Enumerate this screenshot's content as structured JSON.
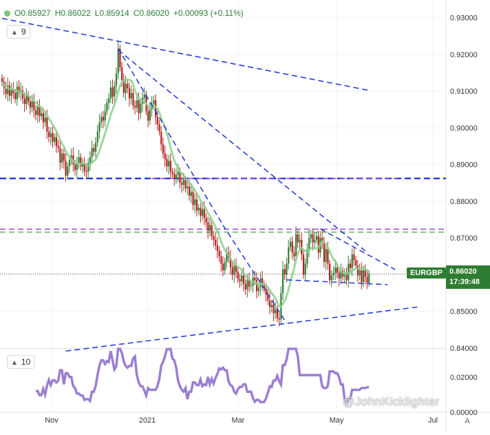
{
  "symbol": "EURGBP",
  "ohlc": {
    "open": "O0.85927",
    "high": "H0.86022",
    "low": "L0.85914",
    "close": "C0.86020",
    "change": "+0.00093 (+0.11%)"
  },
  "last_price": "0.86020",
  "countdown": "17:39:48",
  "main_indicator": {
    "length": "9"
  },
  "sub_indicator": {
    "length": "10"
  },
  "watermark": "@JohnKicklighter",
  "auto_label": "A",
  "colors": {
    "up": "#2e7d32",
    "down": "#b71c1c",
    "ma": "#8fcf8f",
    "trendline": "#2a3fd4",
    "level_purple": "#a44ee0",
    "level_green": "#5fbf5f",
    "oscillator": "#9b7fd0"
  },
  "chart_data": {
    "type": "candlestick",
    "x_ticks": [
      "Nov",
      "2021",
      "Mar",
      "May",
      "Jul"
    ],
    "y_ticks": [
      "0.93000",
      "0.92000",
      "0.91000",
      "0.90000",
      "0.89000",
      "0.88000",
      "0.87000",
      "0.86000",
      "0.85000",
      "0.84000"
    ],
    "ylim": [
      0.84,
      0.932
    ],
    "oscillator_ticks": [
      "0.02000",
      "0.00000"
    ],
    "horizontal_levels": [
      {
        "price": 0.8862,
        "style": "dashed-heavy",
        "color": "trendline"
      },
      {
        "price": 0.8862,
        "style": "dashed",
        "color": "level_purple",
        "start_index": 80
      },
      {
        "price": 0.8724,
        "style": "dashed",
        "color": "level_purple"
      },
      {
        "price": 0.8716,
        "style": "dashed",
        "color": "level_green"
      }
    ],
    "trendlines": [
      {
        "from": [
          0,
          0.9298
        ],
        "to": [
          196,
          0.9102
        ]
      },
      {
        "from": [
          62,
          0.9212
        ],
        "to": [
          194,
          0.8665
        ]
      },
      {
        "from": [
          62,
          0.9217
        ],
        "to": [
          118,
          0.8735
        ]
      },
      {
        "from": [
          118,
          0.8735
        ],
        "to": [
          152,
          0.8468
        ]
      },
      {
        "from": [
          34,
          0.8392
        ],
        "to": [
          222,
          0.8512
        ]
      },
      {
        "from": [
          170,
          0.8725
        ],
        "to": [
          210,
          0.8614
        ]
      },
      {
        "from": [
          152,
          0.8586
        ],
        "to": [
          206,
          0.8573
        ]
      }
    ],
    "close": [
      0.9125,
      0.9108,
      0.9092,
      0.9115,
      0.9087,
      0.9105,
      0.9095,
      0.9078,
      0.9112,
      0.9095,
      0.9102,
      0.908,
      0.9065,
      0.9088,
      0.9072,
      0.9055,
      0.9072,
      0.9048,
      0.9035,
      0.9058,
      0.9032,
      0.904,
      0.9015,
      0.9028,
      0.899,
      0.8975,
      0.8985,
      0.8962,
      0.8975,
      0.895,
      0.8945,
      0.8905,
      0.893,
      0.891,
      0.887,
      0.8895,
      0.8912,
      0.8925,
      0.89,
      0.8885,
      0.8905,
      0.892,
      0.8895,
      0.8902,
      0.8882,
      0.888,
      0.8905,
      0.892,
      0.8945,
      0.8935,
      0.896,
      0.899,
      0.9015,
      0.903,
      0.902,
      0.9045,
      0.9068,
      0.908,
      0.911,
      0.9085,
      0.9115,
      0.9148,
      0.9215,
      0.9165,
      0.913,
      0.9095,
      0.912,
      0.9108,
      0.908,
      0.9095,
      0.906,
      0.9055,
      0.9075,
      0.904,
      0.9065,
      0.9082,
      0.909,
      0.9045,
      0.902,
      0.905,
      0.9065,
      0.9075,
      0.903,
      0.901,
      0.899,
      0.8955,
      0.893,
      0.8915,
      0.8895,
      0.891,
      0.888,
      0.8875,
      0.886,
      0.8872,
      0.888,
      0.885,
      0.8845,
      0.8858,
      0.8835,
      0.884,
      0.8815,
      0.8825,
      0.879,
      0.8805,
      0.8775,
      0.8782,
      0.876,
      0.8778,
      0.8755,
      0.8742,
      0.872,
      0.8735,
      0.8705,
      0.8695,
      0.868,
      0.8665,
      0.865,
      0.863,
      0.8612,
      0.8635,
      0.866,
      0.8645,
      0.862,
      0.86,
      0.8625,
      0.8608,
      0.8588,
      0.8582,
      0.8598,
      0.8575,
      0.856,
      0.8585,
      0.8568,
      0.857,
      0.8592,
      0.8585,
      0.8555,
      0.8565,
      0.859,
      0.8572,
      0.8562,
      0.8545,
      0.853,
      0.8512,
      0.8518,
      0.8495,
      0.8505,
      0.8482,
      0.8478,
      0.855,
      0.8615,
      0.86,
      0.863,
      0.8675,
      0.869,
      0.866,
      0.865,
      0.871,
      0.8688,
      0.8695,
      0.8655,
      0.86,
      0.863,
      0.8668,
      0.87,
      0.871,
      0.8688,
      0.8695,
      0.8705,
      0.866,
      0.87,
      0.869,
      0.8635,
      0.867,
      0.863,
      0.8585,
      0.8598,
      0.8605,
      0.862,
      0.8605,
      0.859,
      0.861,
      0.8595,
      0.8602,
      0.8585,
      0.863,
      0.8618,
      0.8655,
      0.864,
      0.8625,
      0.8598,
      0.8612,
      0.858,
      0.8612,
      0.8595,
      0.8578,
      0.8602
    ]
  }
}
